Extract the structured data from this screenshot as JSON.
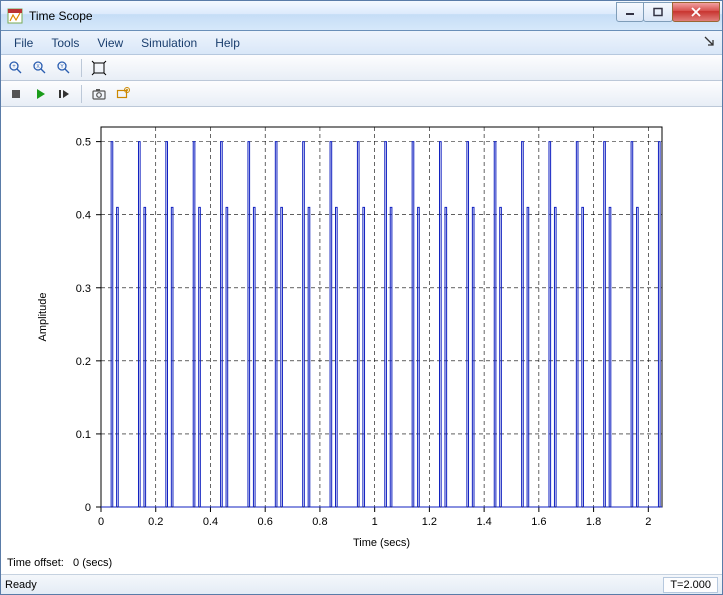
{
  "window": {
    "title": "Time Scope"
  },
  "menu": {
    "items": [
      "File",
      "Tools",
      "View",
      "Simulation",
      "Help"
    ],
    "corner": "↘"
  },
  "info": {
    "time_offset_label": "Time offset:",
    "time_offset_value": "0 (secs)"
  },
  "status": {
    "ready": "Ready",
    "time": "T=2.000"
  },
  "chart": {
    "type": "line",
    "xlabel": "Time (secs)",
    "ylabel": "Amplitude",
    "xlim": [
      0,
      2.05
    ],
    "ylim": [
      0,
      0.52
    ],
    "xticks": [
      0,
      0.2,
      0.4,
      0.6,
      0.8,
      1,
      1.2,
      1.4,
      1.6,
      1.8,
      2
    ],
    "yticks": [
      0,
      0.1,
      0.2,
      0.3,
      0.4,
      0.5
    ],
    "grid": true,
    "grid_style": "dashed",
    "background_color": "#ffffff",
    "grid_color": "#000000",
    "axis_color": "#000000",
    "line_color": "#1020c0",
    "line_width": 1,
    "label_fontsize": 11,
    "tick_fontsize": 11,
    "period": 0.1,
    "n_spikes": 21,
    "spike_pairs": [
      [
        0.04,
        0.5
      ],
      [
        0.06,
        0.41
      ],
      [
        0.14,
        0.5
      ],
      [
        0.16,
        0.41
      ],
      [
        0.24,
        0.5
      ],
      [
        0.26,
        0.41
      ],
      [
        0.34,
        0.5
      ],
      [
        0.36,
        0.41
      ],
      [
        0.44,
        0.5
      ],
      [
        0.46,
        0.41
      ],
      [
        0.54,
        0.5
      ],
      [
        0.56,
        0.41
      ],
      [
        0.64,
        0.5
      ],
      [
        0.66,
        0.41
      ],
      [
        0.74,
        0.5
      ],
      [
        0.76,
        0.41
      ],
      [
        0.84,
        0.5
      ],
      [
        0.86,
        0.41
      ],
      [
        0.94,
        0.5
      ],
      [
        0.96,
        0.41
      ],
      [
        1.04,
        0.5
      ],
      [
        1.06,
        0.41
      ],
      [
        1.14,
        0.5
      ],
      [
        1.16,
        0.41
      ],
      [
        1.24,
        0.5
      ],
      [
        1.26,
        0.41
      ],
      [
        1.34,
        0.5
      ],
      [
        1.36,
        0.41
      ],
      [
        1.44,
        0.5
      ],
      [
        1.46,
        0.41
      ],
      [
        1.54,
        0.5
      ],
      [
        1.56,
        0.41
      ],
      [
        1.64,
        0.5
      ],
      [
        1.66,
        0.41
      ],
      [
        1.74,
        0.5
      ],
      [
        1.76,
        0.41
      ],
      [
        1.84,
        0.5
      ],
      [
        1.86,
        0.41
      ],
      [
        1.94,
        0.5
      ],
      [
        1.96,
        0.41
      ],
      [
        2.04,
        0.5
      ]
    ],
    "spike_halfwidth": 0.003
  }
}
